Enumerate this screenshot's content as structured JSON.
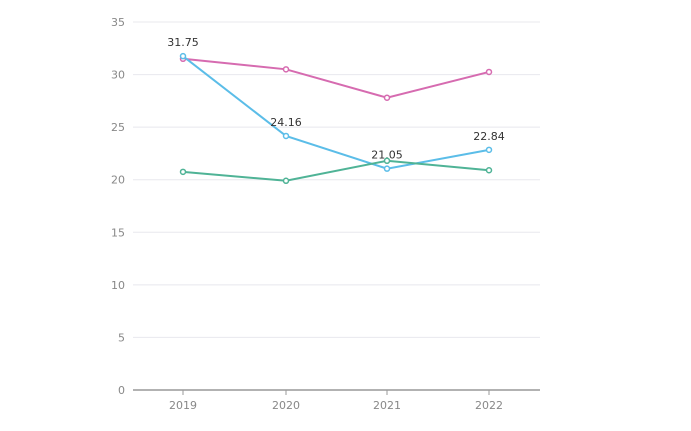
{
  "chart_data": {
    "type": "line",
    "title": "",
    "xlabel": "",
    "ylabel": "",
    "categories": [
      "2019",
      "2020",
      "2021",
      "2022"
    ],
    "ylim": [
      0,
      35
    ],
    "yticks": [
      "0",
      "5",
      "10",
      "15",
      "20",
      "25",
      "30",
      "35"
    ],
    "grid": true,
    "series": [
      {
        "name": "series-pink",
        "color": "#d66bb0",
        "values": [
          31.5,
          30.5,
          27.8,
          30.25
        ],
        "labels": [
          "",
          "",
          "",
          ""
        ]
      },
      {
        "name": "series-blue",
        "color": "#5bbde8",
        "values": [
          31.75,
          24.16,
          21.05,
          22.84
        ],
        "labels": [
          "31.75",
          "24.16",
          "21.05",
          "22.84"
        ]
      },
      {
        "name": "series-green",
        "color": "#4fb396",
        "values": [
          20.75,
          19.9,
          21.8,
          20.9
        ],
        "labels": [
          "",
          "",
          "",
          ""
        ]
      }
    ]
  }
}
